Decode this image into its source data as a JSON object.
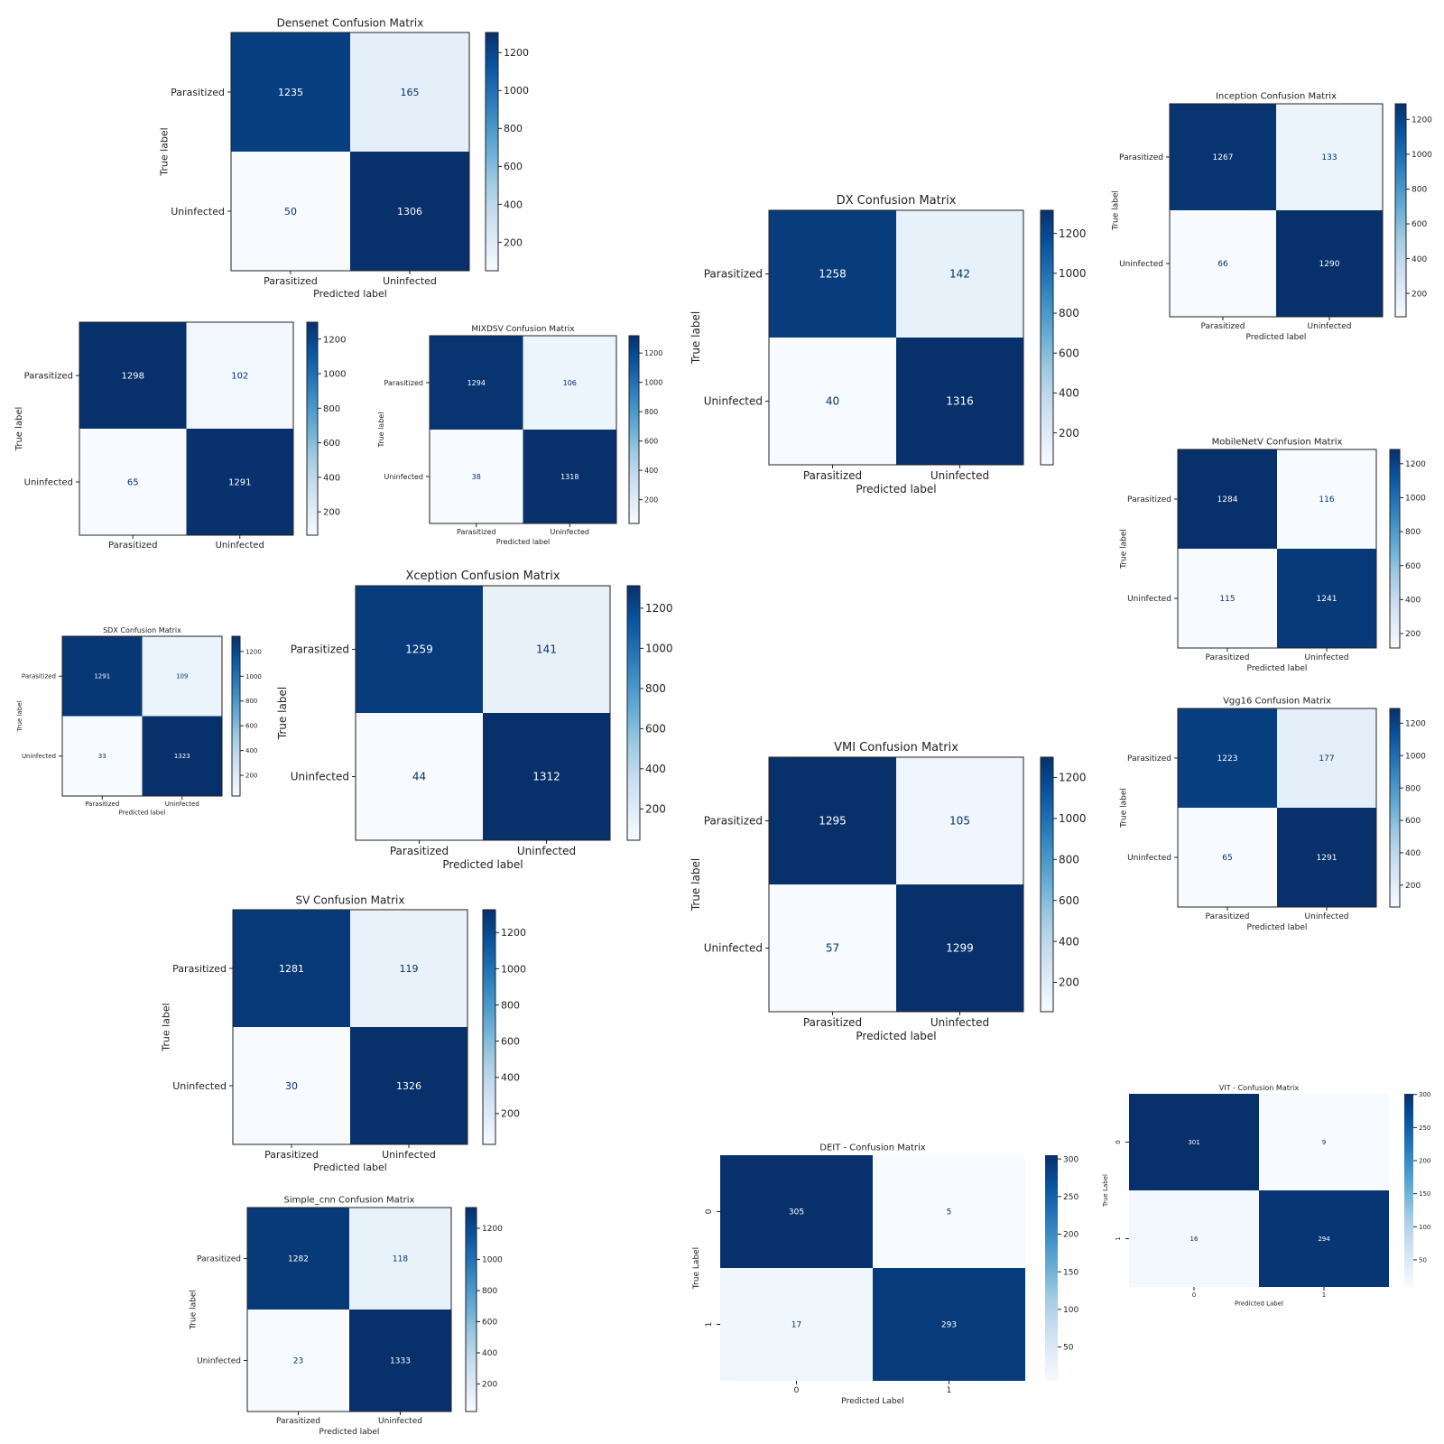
{
  "colors": {
    "low": "#f7fbff",
    "high": "#08306b",
    "border": "#222222"
  },
  "chart_data": [
    {
      "type": "heatmap",
      "title": "Densenet Confusion Matrix",
      "row_labels": [
        "Parasitized",
        "Uninfected"
      ],
      "col_labels": [
        "Parasitized",
        "Uninfected"
      ],
      "ylabel": "True label",
      "xlabel": "Predicted label",
      "values": [
        [
          1235,
          165
        ],
        [
          50,
          1306
        ]
      ],
      "color_range": [
        50,
        1306
      ],
      "colorbar_ticks": [
        200,
        400,
        600,
        800,
        1000,
        1200
      ]
    },
    {
      "type": "heatmap",
      "title": "",
      "row_labels": [
        "Parasitized",
        "Uninfected"
      ],
      "col_labels": [
        "Parasitized",
        "Uninfected"
      ],
      "ylabel": "True label",
      "xlabel": "",
      "values": [
        [
          1298,
          102
        ],
        [
          65,
          1291
        ]
      ],
      "color_range": [
        65,
        1298
      ],
      "colorbar_ticks": [
        200,
        400,
        600,
        800,
        1000,
        1200
      ]
    },
    {
      "type": "heatmap",
      "title": "MIXDSV Confusion Matrix",
      "row_labels": [
        "Parasitized",
        "Uninfected"
      ],
      "col_labels": [
        "Parasitized",
        "Uninfected"
      ],
      "ylabel": "True label",
      "xlabel": "Predicted label",
      "values": [
        [
          1294,
          106
        ],
        [
          38,
          1318
        ]
      ],
      "color_range": [
        38,
        1318
      ],
      "colorbar_ticks": [
        200,
        400,
        600,
        800,
        1000,
        1200
      ]
    },
    {
      "type": "heatmap",
      "title": "SDX Confusion Matrix",
      "row_labels": [
        "Parasitized",
        "Uninfected"
      ],
      "col_labels": [
        "Parasitized",
        "Uninfected"
      ],
      "ylabel": "True label",
      "xlabel": "Predicted label",
      "values": [
        [
          1291,
          109
        ],
        [
          33,
          1323
        ]
      ],
      "color_range": [
        33,
        1323
      ],
      "colorbar_ticks": [
        200,
        400,
        600,
        800,
        1000,
        1200
      ]
    },
    {
      "type": "heatmap",
      "title": "Xception Confusion Matrix",
      "row_labels": [
        "Parasitized",
        "Uninfected"
      ],
      "col_labels": [
        "Parasitized",
        "Uninfected"
      ],
      "ylabel": "True label",
      "xlabel": "Predicted label",
      "values": [
        [
          1259,
          141
        ],
        [
          44,
          1312
        ]
      ],
      "color_range": [
        44,
        1312
      ],
      "colorbar_ticks": [
        200,
        400,
        600,
        800,
        1000,
        1200
      ]
    },
    {
      "type": "heatmap",
      "title": "SV Confusion Matrix",
      "row_labels": [
        "Parasitized",
        "Uninfected"
      ],
      "col_labels": [
        "Parasitized",
        "Uninfected"
      ],
      "ylabel": "True label",
      "xlabel": "Predicted label",
      "values": [
        [
          1281,
          119
        ],
        [
          30,
          1326
        ]
      ],
      "color_range": [
        30,
        1326
      ],
      "colorbar_ticks": [
        200,
        400,
        600,
        800,
        1000,
        1200
      ]
    },
    {
      "type": "heatmap",
      "title": "Simple_cnn Confusion Matrix",
      "row_labels": [
        "Parasitized",
        "Uninfected"
      ],
      "col_labels": [
        "Parasitized",
        "Uninfected"
      ],
      "ylabel": "True label",
      "xlabel": "Predicted label",
      "values": [
        [
          1282,
          118
        ],
        [
          23,
          1333
        ]
      ],
      "color_range": [
        23,
        1333
      ],
      "colorbar_ticks": [
        200,
        400,
        600,
        800,
        1000,
        1200
      ]
    },
    {
      "type": "heatmap",
      "title": "DX Confusion Matrix",
      "row_labels": [
        "Parasitized",
        "Uninfected"
      ],
      "col_labels": [
        "Parasitized",
        "Uninfected"
      ],
      "ylabel": "True label",
      "xlabel": "Predicted label",
      "values": [
        [
          1258,
          142
        ],
        [
          40,
          1316
        ]
      ],
      "color_range": [
        40,
        1316
      ],
      "colorbar_ticks": [
        200,
        400,
        600,
        800,
        1000,
        1200
      ]
    },
    {
      "type": "heatmap",
      "title": "VMI Confusion Matrix",
      "row_labels": [
        "Parasitized",
        "Uninfected"
      ],
      "col_labels": [
        "Parasitized",
        "Uninfected"
      ],
      "ylabel": "True label",
      "xlabel": "Predicted label",
      "values": [
        [
          1295,
          105
        ],
        [
          57,
          1299
        ]
      ],
      "color_range": [
        57,
        1299
      ],
      "colorbar_ticks": [
        200,
        400,
        600,
        800,
        1000,
        1200
      ]
    },
    {
      "type": "heatmap",
      "title": "DEIT - Confusion Matrix",
      "row_labels": [
        "0",
        "1"
      ],
      "col_labels": [
        "0",
        "1"
      ],
      "ylabel": "True Label",
      "xlabel": "Predicted Label",
      "values": [
        [
          305,
          5
        ],
        [
          17,
          293
        ]
      ],
      "color_range": [
        5,
        305
      ],
      "colorbar_ticks": [
        50,
        100,
        150,
        200,
        250,
        300
      ],
      "seaborn": true
    },
    {
      "type": "heatmap",
      "title": "Inception Confusion Matrix",
      "row_labels": [
        "Parasitized",
        "Uninfected"
      ],
      "col_labels": [
        "Parasitized",
        "Uninfected"
      ],
      "ylabel": "True label",
      "xlabel": "Predicted label",
      "values": [
        [
          1267,
          133
        ],
        [
          66,
          1290
        ]
      ],
      "color_range": [
        66,
        1290
      ],
      "colorbar_ticks": [
        200,
        400,
        600,
        800,
        1000,
        1200
      ]
    },
    {
      "type": "heatmap",
      "title": "MobileNetV Confusion Matrix",
      "row_labels": [
        "Parasitized",
        "Uninfected"
      ],
      "col_labels": [
        "Parasitized",
        "Uninfected"
      ],
      "ylabel": "True label",
      "xlabel": "Predicted label",
      "values": [
        [
          1284,
          116
        ],
        [
          115,
          1241
        ]
      ],
      "color_range": [
        115,
        1284
      ],
      "colorbar_ticks": [
        200,
        400,
        600,
        800,
        1000,
        1200
      ]
    },
    {
      "type": "heatmap",
      "title": "Vgg16 Confusion Matrix",
      "row_labels": [
        "Parasitized",
        "Uninfected"
      ],
      "col_labels": [
        "Parasitized",
        "Uninfected"
      ],
      "ylabel": "True label",
      "xlabel": "Predicted label",
      "values": [
        [
          1223,
          177
        ],
        [
          65,
          1291
        ]
      ],
      "color_range": [
        65,
        1291
      ],
      "colorbar_ticks": [
        200,
        400,
        600,
        800,
        1000,
        1200
      ]
    },
    {
      "type": "heatmap",
      "title": "VIT - Confusion Matrix",
      "row_labels": [
        "0",
        "1"
      ],
      "col_labels": [
        "0",
        "1"
      ],
      "ylabel": "True Label",
      "xlabel": "Predicted Label",
      "values": [
        [
          301,
          9
        ],
        [
          16,
          294
        ]
      ],
      "color_range": [
        9,
        301
      ],
      "colorbar_ticks": [
        50,
        100,
        150,
        200,
        250,
        300
      ],
      "seaborn": true
    }
  ]
}
